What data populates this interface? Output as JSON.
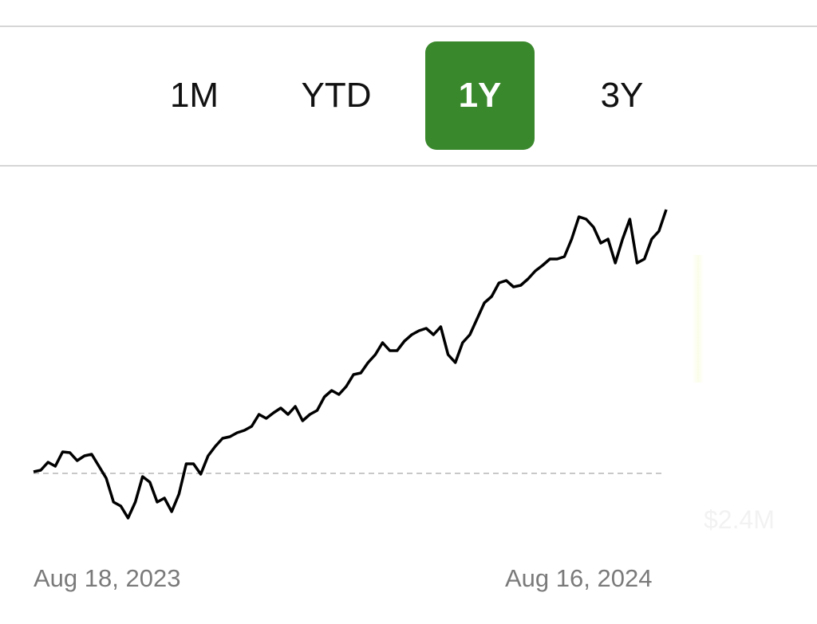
{
  "range_selector": {
    "options": [
      "1M",
      "YTD",
      "1Y",
      "3Y"
    ],
    "selected": "1Y",
    "accent_color": "#3a882c"
  },
  "faded_label": "$2.4M",
  "chart_data": {
    "type": "line",
    "x_start_label": "Aug 18, 2023",
    "x_end_label": "Aug 16, 2024",
    "baseline": 0,
    "baseline_style": "dashed",
    "line_color": "#000000",
    "grid": false,
    "values": [
      2,
      4,
      14,
      9,
      27,
      26,
      16,
      22,
      24,
      9,
      -6,
      -36,
      -41,
      -56,
      -36,
      -4,
      -11,
      -36,
      -31,
      -48,
      -26,
      12,
      12,
      -1,
      22,
      34,
      44,
      46,
      51,
      54,
      59,
      74,
      69,
      76,
      82,
      74,
      84,
      66,
      74,
      79,
      96,
      104,
      99,
      109,
      124,
      126,
      139,
      149,
      164,
      154,
      154,
      166,
      174,
      179,
      182,
      174,
      184,
      149,
      139,
      164,
      174,
      194,
      214,
      222,
      239,
      242,
      234,
      236,
      244,
      254,
      261,
      269,
      269,
      272,
      294,
      322,
      319,
      309,
      289,
      294,
      264,
      294,
      319,
      264,
      269,
      294,
      304,
      331
    ]
  }
}
